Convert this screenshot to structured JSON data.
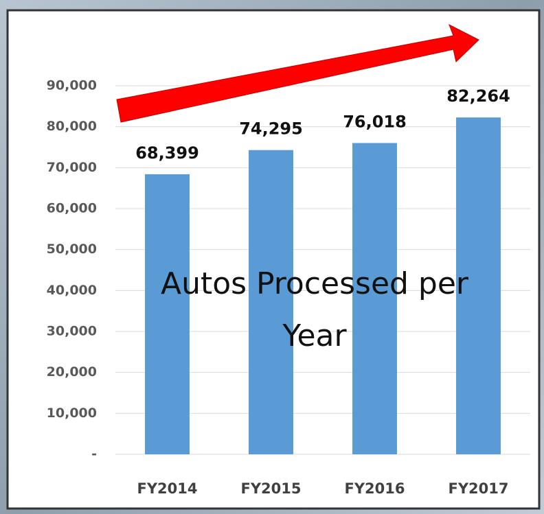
{
  "chart_data": {
    "type": "bar",
    "annotation": "Autos Processed per Year",
    "categories": [
      "FY2014",
      "FY2015",
      "FY2016",
      "FY2017"
    ],
    "values": [
      68399,
      74295,
      76018,
      82264
    ],
    "value_labels": [
      "68,399",
      "74,295",
      "76,018",
      "82,264"
    ],
    "color": "#5b9bd5",
    "ylim": [
      0,
      90000
    ],
    "yticks": [
      {
        "value": 0,
        "label": "-"
      },
      {
        "value": 10000,
        "label": "10,000"
      },
      {
        "value": 20000,
        "label": "20,000"
      },
      {
        "value": 30000,
        "label": "30,000"
      },
      {
        "value": 40000,
        "label": "40,000"
      },
      {
        "value": 50000,
        "label": "50,000"
      },
      {
        "value": 60000,
        "label": "60,000"
      },
      {
        "value": 70000,
        "label": "70,000"
      },
      {
        "value": 80000,
        "label": "80,000"
      },
      {
        "value": 90000,
        "label": "90,000"
      }
    ],
    "grid": true
  }
}
